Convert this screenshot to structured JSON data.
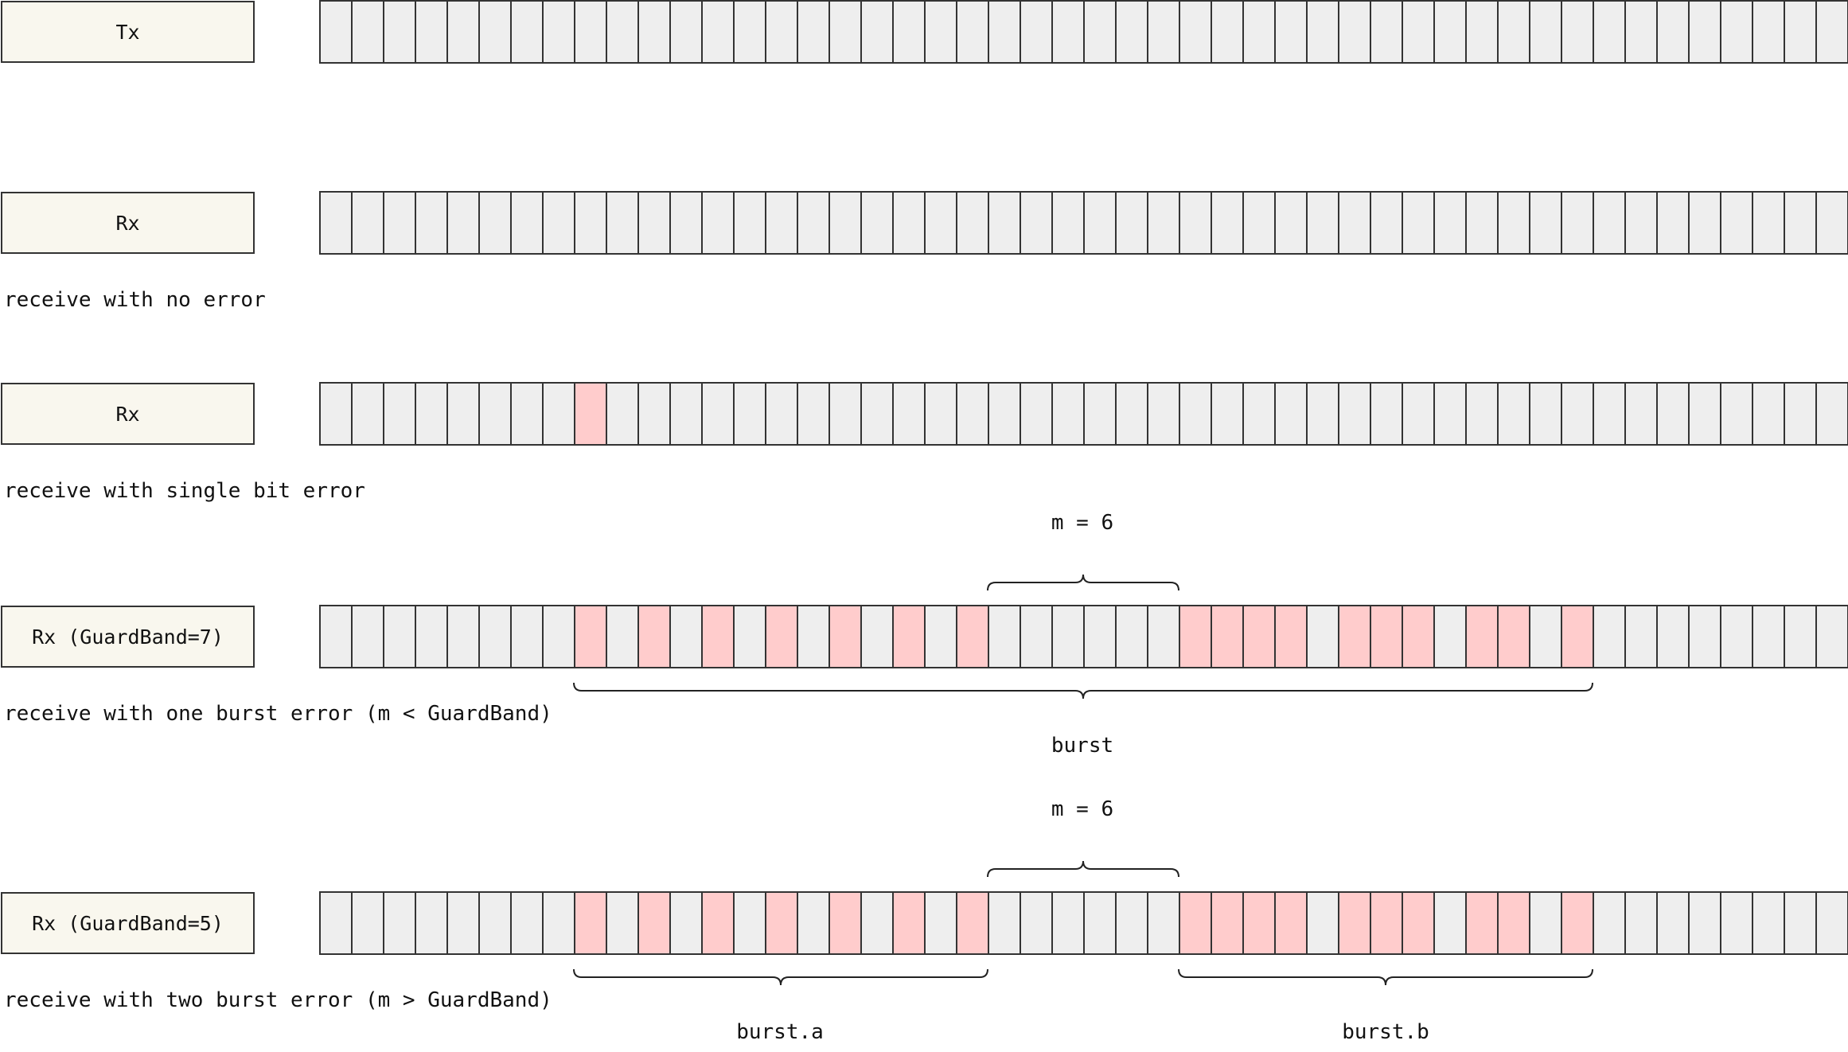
{
  "total_bits": 48,
  "colors": {
    "label_fill": "#f9f7ee",
    "bit_ok": "#eeeeee",
    "bit_error": "#ffcccc",
    "stroke": "#333333"
  },
  "rows": [
    {
      "label": "Tx",
      "caption": "",
      "error_bits": [],
      "braces_above": [],
      "braces_below": []
    },
    {
      "label": "Rx",
      "caption": "receive with no error",
      "error_bits": [],
      "braces_above": [],
      "braces_below": []
    },
    {
      "label": "Rx",
      "caption": "receive with single bit error",
      "error_bits": [
        8
      ],
      "braces_above": [],
      "braces_below": []
    },
    {
      "label": "Rx (GuardBand=7)",
      "caption": "receive with one burst error (m < GuardBand)",
      "error_bits": [
        8,
        10,
        12,
        14,
        16,
        18,
        20,
        27,
        28,
        29,
        30,
        32,
        33,
        34,
        36,
        37,
        39
      ],
      "braces_above": [
        {
          "label": "m = 6",
          "from_bit": 21,
          "to_bit": 26
        }
      ],
      "braces_below": [
        {
          "label": "burst",
          "from_bit": 8,
          "to_bit": 39
        }
      ]
    },
    {
      "label": "Rx (GuardBand=5)",
      "caption": "receive with two burst error (m > GuardBand)",
      "error_bits": [
        8,
        10,
        12,
        14,
        16,
        18,
        20,
        27,
        28,
        29,
        30,
        32,
        33,
        34,
        36,
        37,
        39
      ],
      "braces_above": [
        {
          "label": "m = 6",
          "from_bit": 21,
          "to_bit": 26
        }
      ],
      "braces_below": [
        {
          "label": "burst.a",
          "from_bit": 8,
          "to_bit": 20
        },
        {
          "label": "burst.b",
          "from_bit": 27,
          "to_bit": 39
        }
      ]
    }
  ]
}
